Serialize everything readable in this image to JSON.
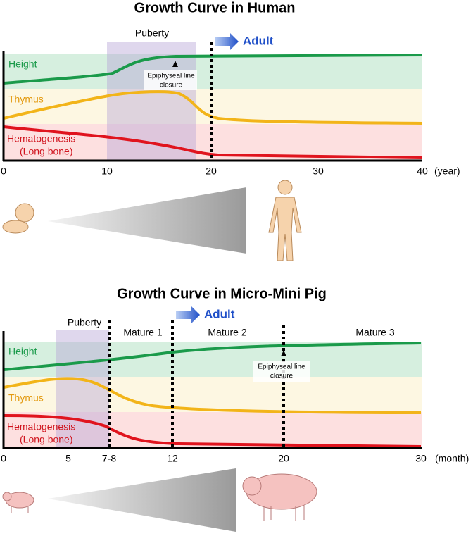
{
  "human": {
    "title": "Growth Curve in Human",
    "puberty": "Puberty",
    "adult": "Adult",
    "annotation": [
      "Epiphyseal line",
      "closure"
    ],
    "rows": {
      "height": "Height",
      "thymus": "Thymus",
      "hematogenesis": [
        "Hematogenesis",
        "(Long bone)"
      ]
    },
    "x_ticks": [
      "0",
      "10",
      "20",
      "30",
      "40"
    ],
    "x_unit": "(year)"
  },
  "pig": {
    "title": "Growth Curve in Micro-Mini Pig",
    "puberty": "Puberty",
    "adult": "Adult",
    "stages": [
      "Mature 1",
      "Mature 2",
      "Mature 3"
    ],
    "annotation": [
      "Epiphyseal line",
      "closure"
    ],
    "rows": {
      "height": "Height",
      "thymus": "Thymus",
      "hematogenesis": [
        "Hematogenesis",
        "(Long bone)"
      ]
    },
    "x_ticks": [
      "0",
      "5",
      "7-8",
      "12",
      "20",
      "30"
    ],
    "x_unit": "(month)"
  }
}
